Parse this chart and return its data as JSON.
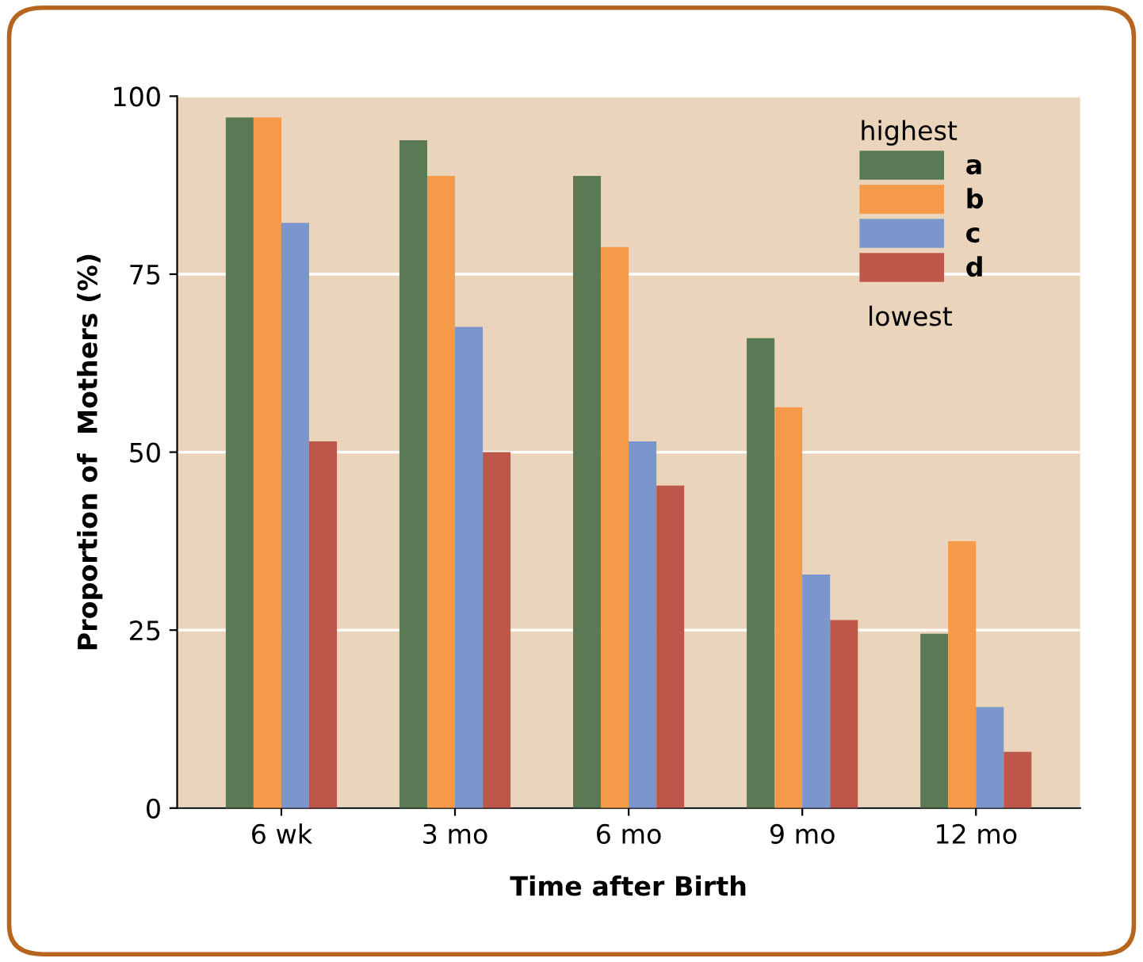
{
  "chart_data": {
    "type": "bar",
    "xlabel": "Time after Birth",
    "ylabel": "Proportion of  Mothers (%)",
    "categories": [
      "6 wk",
      "3 mo",
      "6 mo",
      "9 mo",
      "12 mo"
    ],
    "series": [
      {
        "name": "a",
        "color": "#5a7a55",
        "values": [
          97.0,
          93.8,
          88.8,
          66.0,
          24.5
        ]
      },
      {
        "name": "b",
        "color": "#f59a48",
        "values": [
          97.0,
          88.8,
          78.8,
          56.3,
          37.5
        ]
      },
      {
        "name": "c",
        "color": "#7a96cc",
        "values": [
          82.2,
          67.6,
          51.5,
          32.8,
          14.2
        ]
      },
      {
        "name": "d",
        "color": "#bd574a",
        "values": [
          51.5,
          50.0,
          45.3,
          26.4,
          7.9
        ]
      }
    ],
    "legend_title": "highest",
    "annotations": [
      "lowest"
    ],
    "ylim": [
      0,
      100
    ],
    "yticks": [
      0,
      25,
      50,
      75,
      100
    ],
    "grid": "y",
    "legend": "top right"
  }
}
